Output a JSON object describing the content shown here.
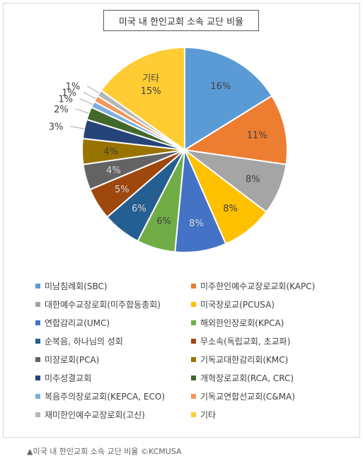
{
  "chart_data": {
    "type": "pie",
    "title": "미국 내 한인교회 소속 교단 비율",
    "slices": [
      {
        "name": "미남침례회(SBC)",
        "value": 16,
        "label": "16%",
        "color": "#5b9bd5"
      },
      {
        "name": "미주한인예수교장로교회(KAPC)",
        "value": 11,
        "label": "11%",
        "color": "#ed7d31"
      },
      {
        "name": "대한예수교장로회(미주합동총회)",
        "value": 8,
        "label": "8%",
        "color": "#a5a5a5"
      },
      {
        "name": "미국장로교(PCUSA)",
        "value": 8,
        "label": "8%",
        "color": "#ffc000"
      },
      {
        "name": "연합감리교(UMC)",
        "value": 8,
        "label": "8%",
        "color": "#4472c4"
      },
      {
        "name": "해외한인장로회(KPCA)",
        "value": 6,
        "label": "6%",
        "color": "#70ad47"
      },
      {
        "name": "순복음, 하나님의 성회",
        "value": 6,
        "label": "6%",
        "color": "#255e91"
      },
      {
        "name": "무소속(독립교회, 초교파)",
        "value": 5,
        "label": "5%",
        "color": "#9e480e"
      },
      {
        "name": "미장로회(PCA)",
        "value": 4,
        "label": "4%",
        "color": "#636363"
      },
      {
        "name": "기독교대한감리회(KMC)",
        "value": 4,
        "label": "4%",
        "color": "#997300"
      },
      {
        "name": "미주성결교회",
        "value": 3,
        "label": "3%",
        "color": "#264478"
      },
      {
        "name": "개혁장로교회(RCA, CRC)",
        "value": 2,
        "label": "2%",
        "color": "#43682b"
      },
      {
        "name": "복음주의장로교회(KEPCA, ECO)",
        "value": 1,
        "label": "1%",
        "color": "#7cafdd"
      },
      {
        "name": "기독교연합선교회(C&MA)",
        "value": 1,
        "label": "1%",
        "color": "#f1975a"
      },
      {
        "name": "재미한인예수교장로회(고신)",
        "value": 1,
        "label": "1%",
        "color": "#b7b7b7"
      },
      {
        "name": "기타",
        "value": 15,
        "label": "15%",
        "color": "#ffcd33"
      }
    ],
    "other_label_name": "기타",
    "legend_position": "bottom"
  },
  "caption": "▲미국 내 한인교회 소속 교단 비율 ©KCMUSA"
}
